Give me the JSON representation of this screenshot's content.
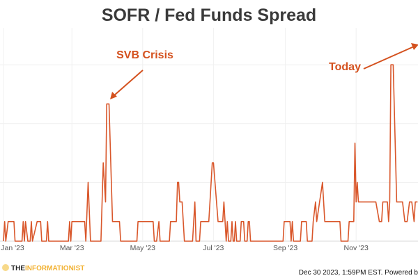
{
  "chart_data": {
    "type": "line",
    "title": "SOFR / Fed Funds Spread",
    "xlabel": "",
    "ylabel": "",
    "x_tick_labels": [
      {
        "date": "2023-01-01",
        "label": "Jan '23"
      },
      {
        "date": "2023-03-01",
        "label": "Mar '23"
      },
      {
        "date": "2023-05-01",
        "label": "May '23"
      },
      {
        "date": "2023-07-01",
        "label": "Jul '23"
      },
      {
        "date": "2023-09-01",
        "label": "Sep '23"
      },
      {
        "date": "2023-11-01",
        "label": "Nov '23"
      }
    ],
    "xlim": [
      "2023-01-01",
      "2023-12-24"
    ],
    "ylim": [
      0,
      11
    ],
    "y_gridlines": [
      3,
      6,
      9
    ],
    "y_tick_labels_shown": false,
    "grid": true,
    "line_color": "#d9572b",
    "series": [
      {
        "points": [
          [
            "2023-01-01",
            0
          ],
          [
            "2023-01-02",
            1
          ],
          [
            "2023-01-03",
            0
          ],
          [
            "2023-01-05",
            1
          ],
          [
            "2023-01-10",
            1
          ],
          [
            "2023-01-11",
            0
          ],
          [
            "2023-01-17",
            0
          ],
          [
            "2023-01-18",
            1
          ],
          [
            "2023-01-19",
            0
          ],
          [
            "2023-01-20",
            1
          ],
          [
            "2023-01-22",
            0
          ],
          [
            "2023-01-24",
            0
          ],
          [
            "2023-01-25",
            1
          ],
          [
            "2023-01-26",
            0
          ],
          [
            "2023-01-30",
            1
          ],
          [
            "2023-02-02",
            1
          ],
          [
            "2023-02-03",
            0
          ],
          [
            "2023-02-07",
            0
          ],
          [
            "2023-02-08",
            1
          ],
          [
            "2023-02-09",
            0
          ],
          [
            "2023-02-26",
            0
          ],
          [
            "2023-02-27",
            1
          ],
          [
            "2023-02-28",
            0
          ],
          [
            "2023-03-01",
            1
          ],
          [
            "2023-03-12",
            1
          ],
          [
            "2023-03-13",
            0
          ],
          [
            "2023-03-15",
            3
          ],
          [
            "2023-03-17",
            0
          ],
          [
            "2023-03-26",
            0
          ],
          [
            "2023-03-28",
            4
          ],
          [
            "2023-03-30",
            2
          ],
          [
            "2023-03-31",
            7
          ],
          [
            "2023-04-02",
            7
          ],
          [
            "2023-04-05",
            1
          ],
          [
            "2023-04-11",
            1
          ],
          [
            "2023-04-12",
            0
          ],
          [
            "2023-04-26",
            0
          ],
          [
            "2023-04-27",
            1
          ],
          [
            "2023-05-10",
            1
          ],
          [
            "2023-05-11",
            0
          ],
          [
            "2023-05-13",
            0
          ],
          [
            "2023-05-15",
            1
          ],
          [
            "2023-05-16",
            0
          ],
          [
            "2023-05-24",
            0
          ],
          [
            "2023-05-25",
            1
          ],
          [
            "2023-05-30",
            1
          ],
          [
            "2023-05-31",
            3
          ],
          [
            "2023-06-01",
            3
          ],
          [
            "2023-06-02",
            2
          ],
          [
            "2023-06-04",
            2
          ],
          [
            "2023-06-06",
            0
          ],
          [
            "2023-06-13",
            0
          ],
          [
            "2023-06-15",
            2
          ],
          [
            "2023-06-16",
            0
          ],
          [
            "2023-06-19",
            0
          ],
          [
            "2023-06-20",
            1
          ],
          [
            "2023-06-27",
            1
          ],
          [
            "2023-06-28",
            2
          ],
          [
            "2023-06-30",
            4
          ],
          [
            "2023-07-01",
            4
          ],
          [
            "2023-07-05",
            1
          ],
          [
            "2023-07-09",
            1
          ],
          [
            "2023-07-10",
            2
          ],
          [
            "2023-07-12",
            0
          ],
          [
            "2023-07-13",
            1
          ],
          [
            "2023-07-14",
            0
          ],
          [
            "2023-07-16",
            0
          ],
          [
            "2023-07-17",
            1
          ],
          [
            "2023-07-18",
            0
          ],
          [
            "2023-07-19",
            0
          ],
          [
            "2023-07-20",
            1
          ],
          [
            "2023-07-21",
            0
          ],
          [
            "2023-07-24",
            0
          ],
          [
            "2023-07-25",
            1
          ],
          [
            "2023-07-27",
            1
          ],
          [
            "2023-07-28",
            0
          ],
          [
            "2023-07-30",
            0
          ],
          [
            "2023-07-31",
            1
          ],
          [
            "2023-08-01",
            1
          ],
          [
            "2023-08-02",
            0
          ],
          [
            "2023-08-30",
            0
          ],
          [
            "2023-08-31",
            1
          ],
          [
            "2023-09-05",
            1
          ],
          [
            "2023-09-06",
            0
          ],
          [
            "2023-09-07",
            1
          ],
          [
            "2023-09-08",
            0
          ],
          [
            "2023-09-14",
            0
          ],
          [
            "2023-09-15",
            1
          ],
          [
            "2023-09-19",
            1
          ],
          [
            "2023-09-20",
            0
          ],
          [
            "2023-09-24",
            0
          ],
          [
            "2023-09-25",
            1
          ],
          [
            "2023-09-27",
            2
          ],
          [
            "2023-09-28",
            1
          ],
          [
            "2023-10-03",
            3
          ],
          [
            "2023-10-05",
            1
          ],
          [
            "2023-10-18",
            1
          ],
          [
            "2023-10-19",
            0
          ],
          [
            "2023-10-25",
            0
          ],
          [
            "2023-10-26",
            1
          ],
          [
            "2023-10-30",
            1
          ],
          [
            "2023-10-31",
            5
          ],
          [
            "2023-11-01",
            2
          ],
          [
            "2023-11-02",
            3
          ],
          [
            "2023-11-03",
            2
          ],
          [
            "2023-11-18",
            2
          ],
          [
            "2023-11-21",
            1
          ],
          [
            "2023-11-23",
            1
          ],
          [
            "2023-11-24",
            2
          ],
          [
            "2023-11-28",
            2
          ],
          [
            "2023-11-29",
            1
          ],
          [
            "2023-11-30",
            2
          ],
          [
            "2023-12-01",
            9
          ],
          [
            "2023-12-03",
            9
          ],
          [
            "2023-12-06",
            2
          ],
          [
            "2023-12-11",
            2
          ],
          [
            "2023-12-13",
            1
          ],
          [
            "2023-12-15",
            1
          ],
          [
            "2023-12-17",
            2
          ],
          [
            "2023-12-19",
            2
          ],
          [
            "2023-12-21",
            1
          ],
          [
            "2023-12-22",
            2
          ],
          [
            "2023-12-24",
            2
          ]
        ]
      }
    ],
    "annotations": [
      {
        "text": "SVB Crisis",
        "points_to": "2023-03-31"
      },
      {
        "text": "Today",
        "points_to": "2023-12-30"
      }
    ]
  },
  "footer": {
    "logo_part1": "THE",
    "logo_part2": "INFORMATIONIST",
    "timestamp": "Dec 30 2023, 1:59PM EST. Powered b"
  },
  "colors": {
    "accent": "#d4511e",
    "logo_yellow": "#f2b233"
  }
}
